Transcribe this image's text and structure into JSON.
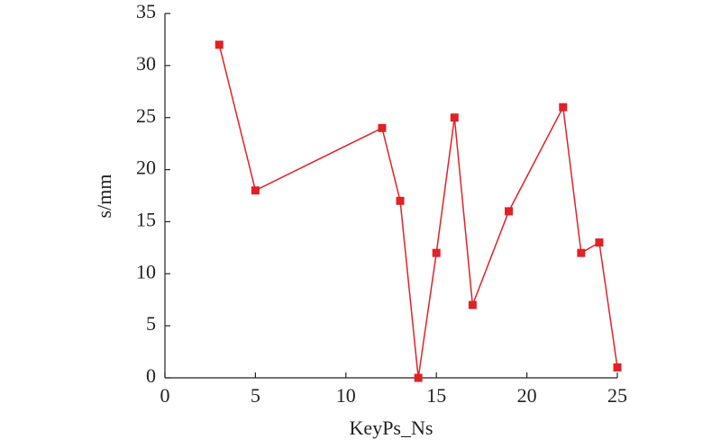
{
  "chart_data": {
    "type": "line",
    "x_label": "KeyPs_Ns",
    "y_label": "s/mm",
    "x": [
      3,
      5,
      12,
      13,
      14,
      15,
      16,
      17,
      19,
      22,
      23,
      24,
      25
    ],
    "series": [
      {
        "name": "s",
        "color": "#e02226",
        "values": [
          32,
          18,
          24,
          17,
          0,
          12,
          25,
          7,
          16,
          26,
          12,
          13,
          1
        ]
      }
    ],
    "xlim": [
      0,
      25
    ],
    "xticks": [
      0,
      5,
      10,
      15,
      20,
      25
    ],
    "ylim": [
      0,
      35
    ],
    "yticks": [
      0,
      5,
      10,
      15,
      20,
      25,
      30,
      35
    ],
    "marker": "square"
  }
}
